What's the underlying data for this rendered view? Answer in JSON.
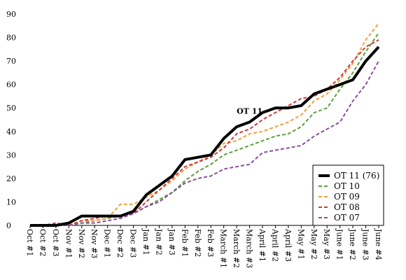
{
  "chart_data": {
    "type": "line",
    "title": "",
    "xlabel": "",
    "ylabel": "",
    "ylim": [
      0,
      90
    ],
    "yticks": [
      0,
      10,
      20,
      30,
      40,
      50,
      60,
      70,
      80,
      90
    ],
    "grid": false,
    "legend_position": "bottom-right",
    "categories": [
      "Oct #1",
      "Oct #2",
      "Oct #3",
      "Nov #1",
      "Nov #2",
      "Nov #3",
      "Dec #1",
      "Dec #2",
      "Dec #3",
      "Jan #1",
      "Jan #2",
      "Jan #3",
      "Feb #1",
      "Feb #2",
      "Feb #3",
      "March #1",
      "March #2",
      "March #3",
      "April #1",
      "April #2",
      "April #3",
      "May #1",
      "May #2",
      "May #3",
      "June #1",
      "June #2",
      "June #3",
      "June #4"
    ],
    "series": [
      {
        "name": "OT 11 (76)",
        "color": "#000000",
        "style": "solid",
        "values": [
          0,
          0,
          0,
          1,
          4,
          4,
          4,
          4,
          6,
          13,
          17,
          21,
          28,
          29,
          30,
          37,
          42,
          44,
          48,
          50,
          50,
          51,
          56,
          58,
          60,
          62,
          70,
          76
        ]
      },
      {
        "name": "OT 10",
        "color": "#5e9e3a",
        "style": "dashed",
        "values": [
          0,
          0,
          0,
          0,
          1,
          2,
          3,
          4,
          5,
          8,
          11,
          14,
          19,
          23,
          26,
          30,
          32,
          34,
          36,
          38,
          39,
          42,
          48,
          50,
          58,
          65,
          74,
          82
        ]
      },
      {
        "name": "OT 09",
        "color": "#f0a03c",
        "style": "dashed",
        "values": [
          0,
          0,
          0,
          0,
          2,
          2,
          3,
          9,
          9,
          12,
          15,
          19,
          24,
          27,
          30,
          35,
          36,
          39,
          40,
          42,
          44,
          47,
          53,
          56,
          62,
          69,
          79,
          86
        ]
      },
      {
        "name": "OT 08",
        "color": "#d0393a",
        "style": "dashed",
        "values": [
          0,
          0,
          1,
          0,
          2,
          3,
          4,
          4,
          5,
          10,
          15,
          20,
          25,
          27,
          29,
          33,
          39,
          41,
          45,
          48,
          51,
          54,
          55,
          58,
          63,
          70,
          76,
          79
        ]
      },
      {
        "name": "OT 07",
        "color": "#8a4e9e",
        "style": "dashed",
        "values": [
          0,
          0,
          0,
          0,
          1,
          1,
          2,
          3,
          5,
          8,
          10,
          14,
          18,
          20,
          21,
          24,
          25,
          26,
          31,
          32,
          33,
          34,
          38,
          41,
          44,
          53,
          60,
          70
        ]
      }
    ],
    "annotations": [
      {
        "text": "OT 11",
        "series": "OT 11 (76)",
        "category": "March #3"
      }
    ]
  }
}
